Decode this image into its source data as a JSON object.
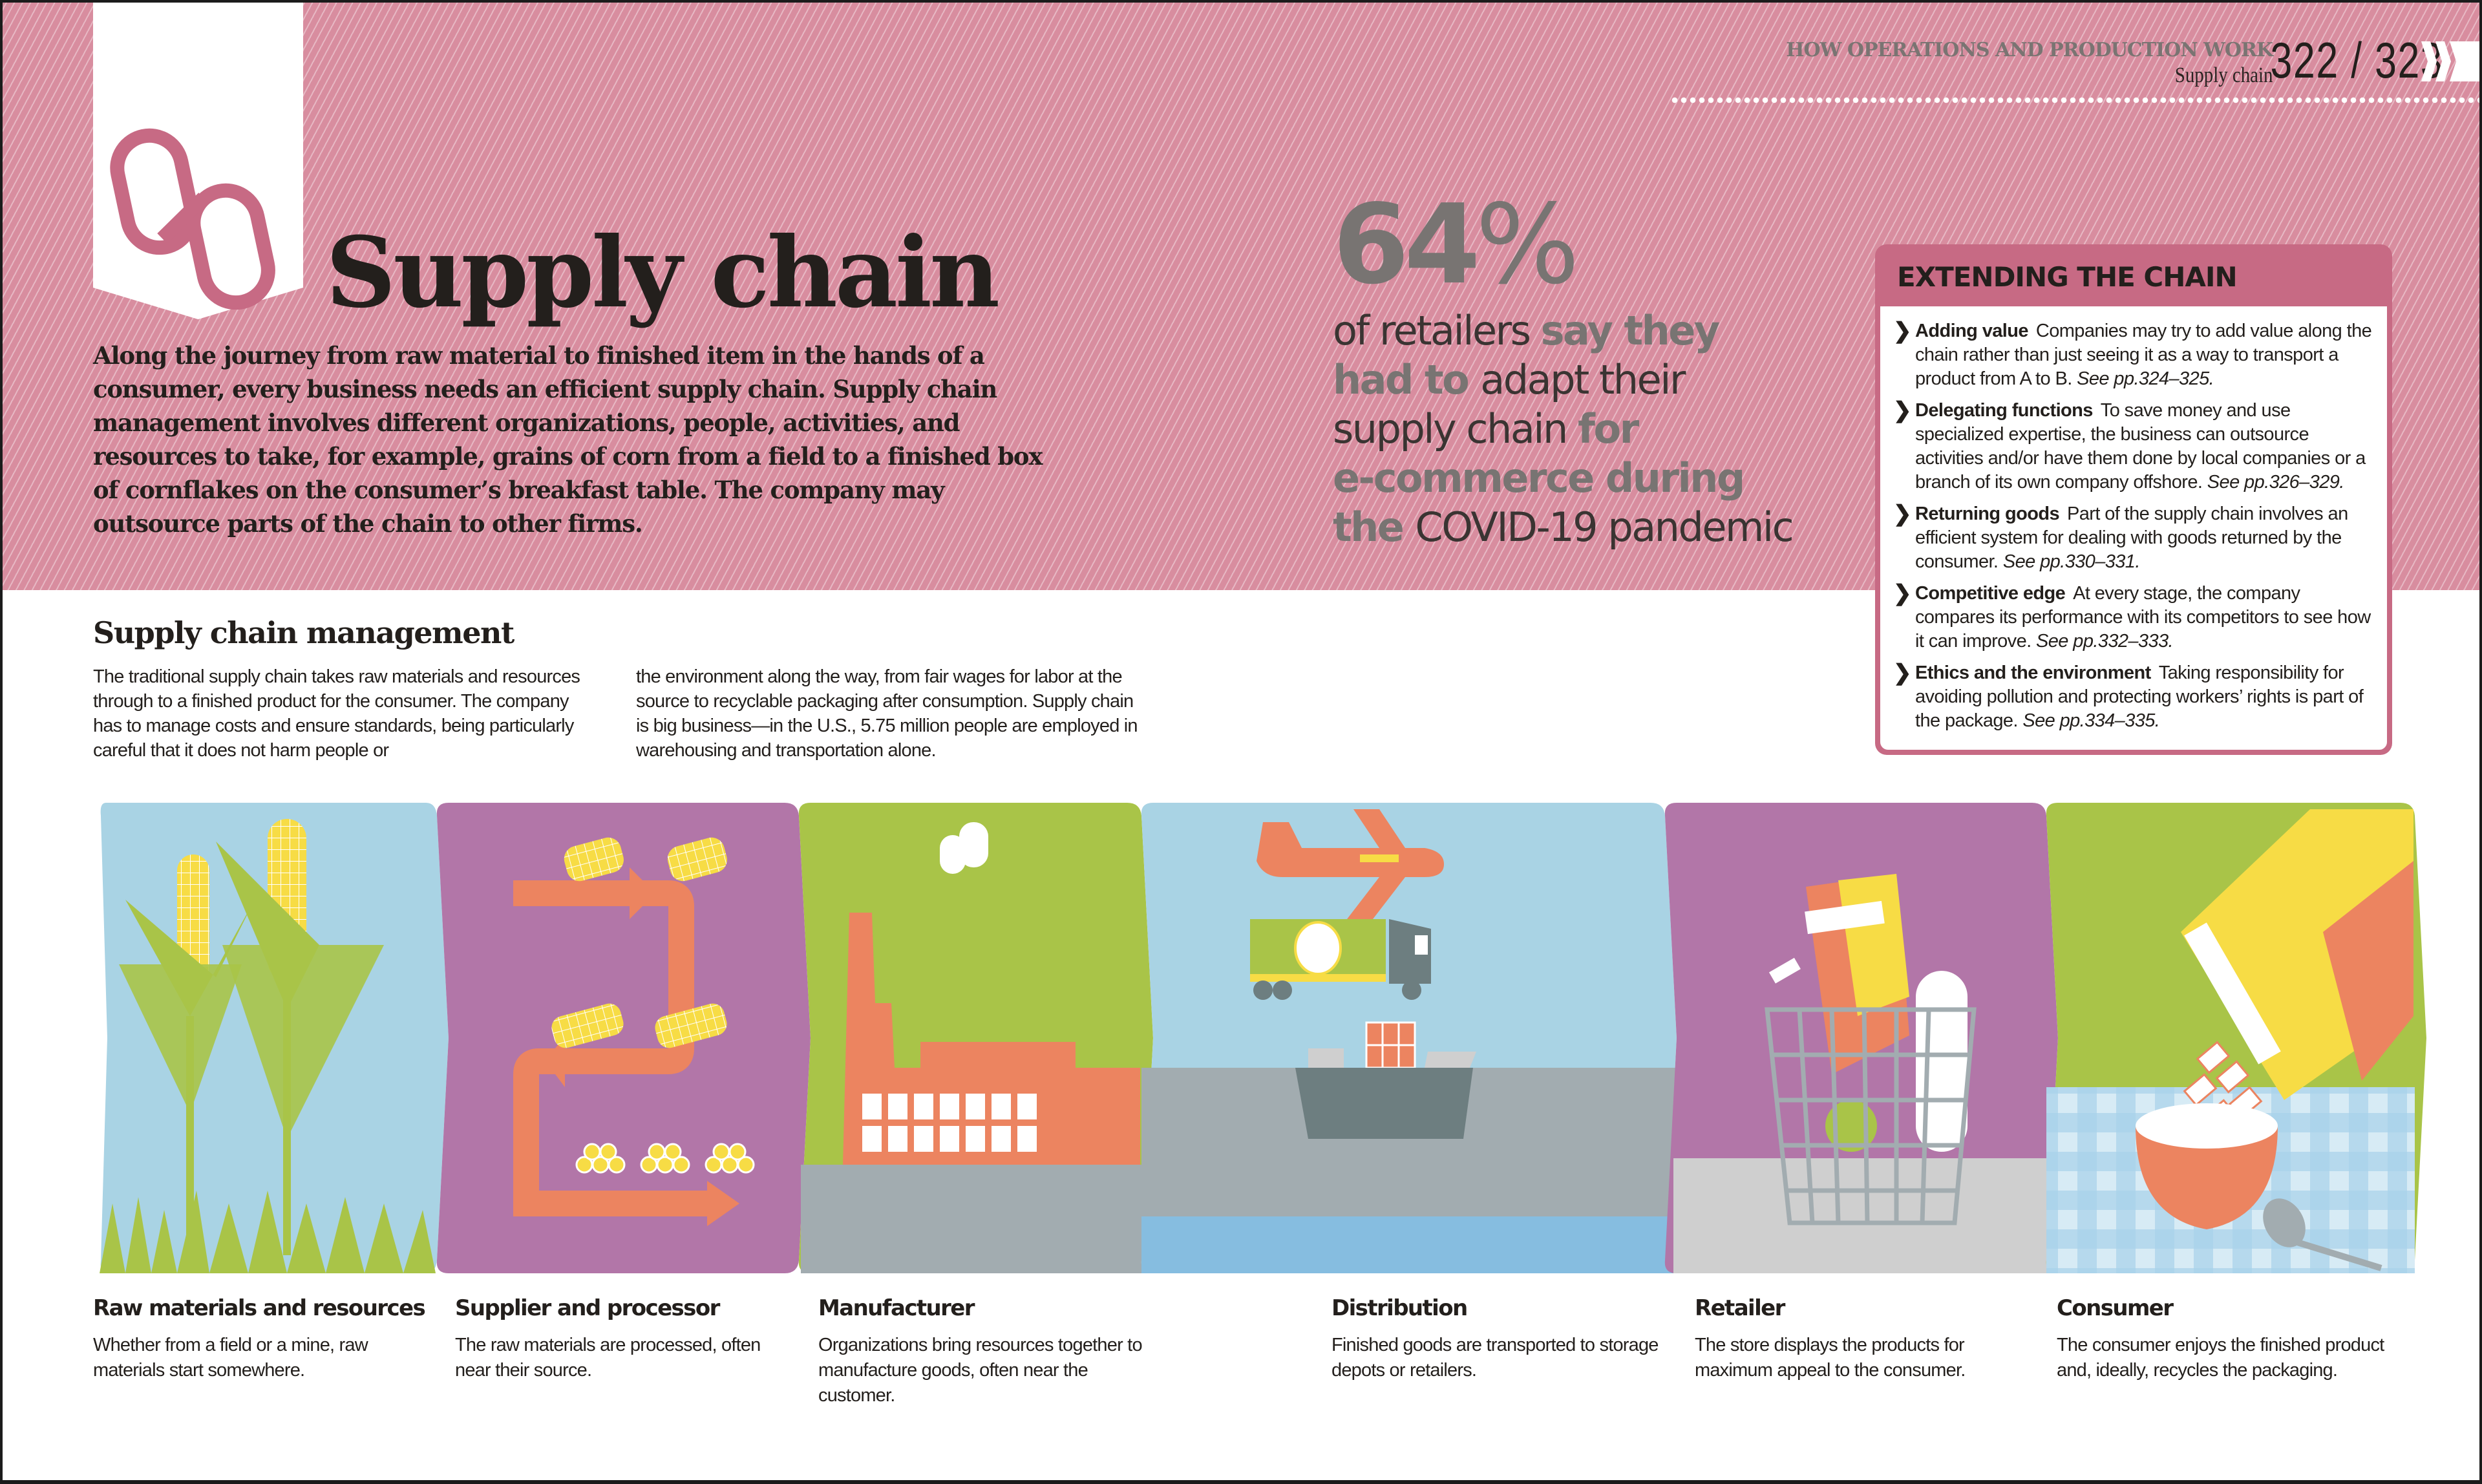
{
  "colors": {
    "band_pink": "#d88d9f",
    "accent_pink": "#c76a84",
    "dark_text": "#231f1c",
    "stat_gray": "#787472",
    "orange": "#ec8460",
    "yellow": "#f7dc45",
    "green": "#a9c448",
    "purple": "#b276a8",
    "sky_blue": "#a9d3e4",
    "slate": "#6d7e80",
    "light_gray": "#a2acb0"
  },
  "running_head": {
    "section": "HOW OPERATIONS AND PRODUCTION WORK",
    "topic": "Supply chain",
    "pages": "322 / 323"
  },
  "header": {
    "icon": "chain-link-icon",
    "title": "Supply chain",
    "intro": "Along the journey from raw material to finished item in the hands of a consumer, every business needs an efficient supply chain. Supply chain management involves different organizations, people, activities, and resources to take, for example, grains of corn from a field to a finished box of cornflakes on the consumer’s breakfast table. The company may outsource parts of the chain to other firms."
  },
  "stat": {
    "number": "64",
    "percent": "%",
    "lines": [
      [
        {
          "t": "of retailers ",
          "s": "dk"
        },
        {
          "t": "say they",
          "s": "gy"
        }
      ],
      [
        {
          "t": "had to ",
          "s": "gy"
        },
        {
          "t": "adapt their",
          "s": "dk"
        }
      ],
      [
        {
          "t": "supply chain ",
          "s": "dk"
        },
        {
          "t": "for",
          "s": "gy"
        }
      ],
      [
        {
          "t": "e-commerce during",
          "s": "gy"
        }
      ],
      [
        {
          "t": "the ",
          "s": "gy"
        },
        {
          "t": "COVID-19 pandemic",
          "s": "dk"
        }
      ]
    ]
  },
  "extending": {
    "title": "EXTENDING THE CHAIN",
    "items": [
      {
        "head": "Adding value",
        "text": "Companies may try to add value along the chain rather than just seeing it as a way to transport a product from A to B.",
        "ref": "See pp.324–325."
      },
      {
        "head": "Delegating functions",
        "text": "To save money and use specialized expertise, the business can outsource activities and/or have them done by local companies or a branch of its own company offshore.",
        "ref": "See pp.326–329."
      },
      {
        "head": "Returning goods",
        "text": "Part of the supply chain involves an efficient system for dealing with goods returned by the consumer.",
        "ref": "See pp.330–331."
      },
      {
        "head": "Competitive edge",
        "text": "At every stage, the company compares its performance with its competitors to see how it can improve.",
        "ref": "See pp.332–333."
      },
      {
        "head": "Ethics and the environment",
        "text": "Taking responsibility for avoiding pollution and protecting workers’ rights is part of the package.",
        "ref": "See pp.334–335."
      }
    ]
  },
  "scm": {
    "title": "Supply chain management",
    "col1": "The traditional supply chain takes raw materials and resources through to a finished product for the consumer. The company has to manage costs and ensure standards, being particularly careful that it does not harm people or",
    "col2": "the environment along the way, from fair wages for labor at the source to recyclable packaging after consumption. Supply chain is big business—in the U.S., 5.75 million people are employed in warehousing and transportation alone."
  },
  "stages": [
    {
      "title": "Raw materials and resources",
      "text": "Whether from a field or a mine, raw materials start somewhere.",
      "illustration": "corn-field"
    },
    {
      "title": "Supplier and processor",
      "text": "The raw materials are processed, often near their source.",
      "illustration": "processing-flow"
    },
    {
      "title": "Manufacturer",
      "text": "Organizations bring resources together to manufacture goods, often near the customer.",
      "illustration": "factory"
    },
    {
      "title": "Distribution",
      "text": "Finished goods are transported to storage depots or retailers.",
      "illustration": "plane-truck-ship"
    },
    {
      "title": "Retailer",
      "text": "The store displays the products for maximum appeal to the consumer.",
      "illustration": "shopping-basket"
    },
    {
      "title": "Consumer",
      "text": "The consumer enjoys the finished product and, ideally, recycles the packaging.",
      "illustration": "cereal-bowl"
    }
  ]
}
